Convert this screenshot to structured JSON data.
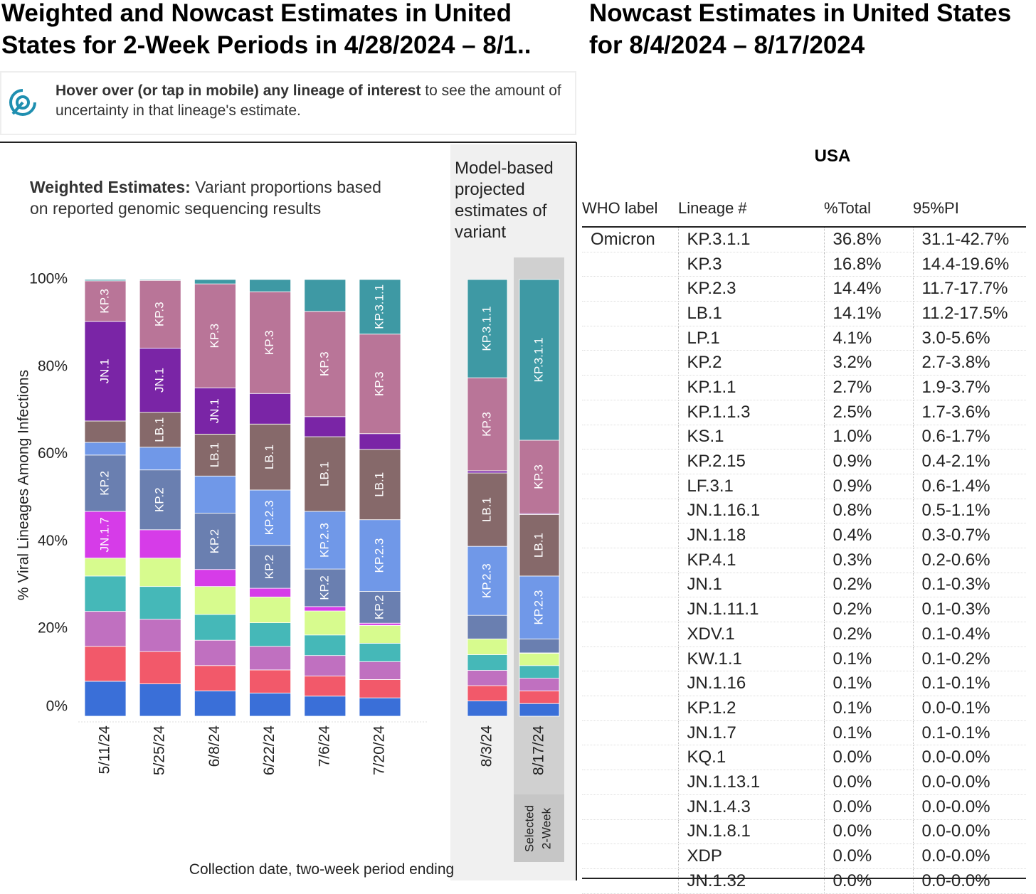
{
  "header": {
    "left_title": [
      "Weighted and Nowcast Estimates in United",
      "States for 2-Week Periods in 4/28/2024 – 8/1.."
    ],
    "right_title": [
      "Nowcast Estimates in United States",
      "for 8/4/2024 – 8/17/2024"
    ]
  },
  "hint": {
    "bold": "Hover over (or tap in mobile) any lineage of interest",
    "text": " to see the amount of uncertainty in that lineage's estimate."
  },
  "chart_data": {
    "type": "stacked_bar",
    "title_bold": "Weighted Estimates:",
    "title": " Variant proportions based on reported genomic sequencing results",
    "y_label": "% Viral Lineages Among Infections",
    "x_label": "Collection date, two-week period ending",
    "projected_label": "Model-based projected estimates of variant",
    "selected_label": [
      "Selected",
      "2-Week"
    ],
    "projected_start": "8/3/24",
    "selected": "8/17/24",
    "categories": [
      "5/11/24",
      "5/25/24",
      "6/8/24",
      "6/22/24",
      "7/6/24",
      "7/20/24",
      "8/3/24",
      "8/17/24"
    ],
    "ylim": [
      0,
      100
    ],
    "yticks": [
      {
        "value": 0,
        "label": "0%"
      },
      {
        "value": 20,
        "label": "20%"
      },
      {
        "value": 40,
        "label": "40%"
      },
      {
        "value": 60,
        "label": "60%"
      },
      {
        "value": 80,
        "label": "80%"
      },
      {
        "value": 100,
        "label": "100%"
      }
    ],
    "series": [
      {
        "color": "#3a6fd8",
        "values": [
          8,
          7.4,
          5.8,
          5.3,
          4.6,
          4.2,
          3.5,
          2.9
        ]
      },
      {
        "color": "#f2596a",
        "values": [
          8,
          7.4,
          5.8,
          5.3,
          4.6,
          4.2,
          3.5,
          2.9
        ]
      },
      {
        "color": "#c070c0",
        "values": [
          8,
          7.4,
          5.8,
          5.4,
          4.7,
          4.1,
          3.5,
          2.9
        ]
      },
      {
        "color": "#45b8b8",
        "values": [
          8.1,
          7.5,
          5.9,
          5.4,
          4.7,
          4.2,
          3.6,
          2.9
        ]
      },
      {
        "color": "#d7fb8e",
        "values": [
          4.1,
          6.5,
          6.4,
          5.9,
          5.5,
          4.1,
          3.6,
          2.8
        ]
      },
      {
        "name": "JN.1.7",
        "color": "#d63ce8",
        "values": [
          10.7,
          6.5,
          3.9,
          2.0,
          1.0,
          0.5,
          0,
          0.1
        ],
        "labeled": [
          true,
          false,
          false,
          false,
          false,
          false,
          false,
          false
        ]
      },
      {
        "name": "KP.2",
        "color": "#6a7fb0",
        "values": [
          12.9,
          13.7,
          12.9,
          9.8,
          8.6,
          7.3,
          5.4,
          3.2
        ],
        "labeled": [
          true,
          true,
          true,
          true,
          true,
          true,
          false,
          false
        ]
      },
      {
        "name": "KP.2.3",
        "color": "#7098e8",
        "values": [
          2.9,
          5.2,
          8.5,
          12.7,
          13.2,
          16.4,
          15.8,
          14.4
        ],
        "labeled": [
          false,
          false,
          false,
          true,
          true,
          true,
          true,
          true
        ]
      },
      {
        "name": "LB.1",
        "color": "#86696a",
        "values": [
          4.9,
          8.0,
          9.6,
          15.1,
          17.1,
          16.1,
          16.8,
          14.1
        ],
        "labeled": [
          false,
          true,
          true,
          true,
          true,
          true,
          true,
          true
        ]
      },
      {
        "name": "JN.1",
        "color": "#7a25a6",
        "values": [
          22.8,
          14.7,
          10.6,
          7.0,
          4.6,
          3.6,
          0.5,
          0.2
        ],
        "labeled": [
          true,
          true,
          true,
          false,
          false,
          false,
          false,
          false
        ]
      },
      {
        "name": "KP.3",
        "color": "#b97598",
        "values": [
          9.3,
          15.5,
          23.8,
          23.3,
          24.1,
          22.8,
          21.3,
          16.8
        ],
        "labeled": [
          true,
          true,
          true,
          true,
          true,
          true,
          true,
          true
        ]
      },
      {
        "name": "KP.3.1.1",
        "color": "#3e99a4",
        "values": [
          0.3,
          0.2,
          1.0,
          2.8,
          7.3,
          12.5,
          22.5,
          36.8
        ],
        "labeled": [
          false,
          false,
          false,
          false,
          false,
          true,
          true,
          true
        ]
      }
    ]
  },
  "table": {
    "title": "USA",
    "columns": [
      "WHO label",
      "Lineage #",
      "%Total",
      "95%PI"
    ],
    "group": "Omicron",
    "rows": [
      [
        "KP.3.1.1",
        "36.8%",
        "31.1-42.7%"
      ],
      [
        "KP.3",
        "16.8%",
        "14.4-19.6%"
      ],
      [
        "KP.2.3",
        "14.4%",
        "11.7-17.7%"
      ],
      [
        "LB.1",
        "14.1%",
        "11.2-17.5%"
      ],
      [
        "LP.1",
        "4.1%",
        "3.0-5.6%"
      ],
      [
        "KP.2",
        "3.2%",
        "2.7-3.8%"
      ],
      [
        "KP.1.1",
        "2.7%",
        "1.9-3.7%"
      ],
      [
        "KP.1.1.3",
        "2.5%",
        "1.7-3.6%"
      ],
      [
        "KS.1",
        "1.0%",
        "0.6-1.7%"
      ],
      [
        "KP.2.15",
        "0.9%",
        "0.4-2.1%"
      ],
      [
        "LF.3.1",
        "0.9%",
        "0.6-1.4%"
      ],
      [
        "JN.1.16.1",
        "0.8%",
        "0.5-1.1%"
      ],
      [
        "JN.1.18",
        "0.4%",
        "0.3-0.7%"
      ],
      [
        "KP.4.1",
        "0.3%",
        "0.2-0.6%"
      ],
      [
        "JN.1",
        "0.2%",
        "0.1-0.3%"
      ],
      [
        "JN.1.11.1",
        "0.2%",
        "0.1-0.3%"
      ],
      [
        "XDV.1",
        "0.2%",
        "0.1-0.4%"
      ],
      [
        "KW.1.1",
        "0.1%",
        "0.1-0.2%"
      ],
      [
        "JN.1.16",
        "0.1%",
        "0.1-0.1%"
      ],
      [
        "KP.1.2",
        "0.1%",
        "0.0-0.1%"
      ],
      [
        "JN.1.7",
        "0.1%",
        "0.1-0.1%"
      ],
      [
        "KQ.1",
        "0.0%",
        "0.0-0.0%"
      ],
      [
        "JN.1.13.1",
        "0.0%",
        "0.0-0.0%"
      ],
      [
        "JN.1.4.3",
        "0.0%",
        "0.0-0.0%"
      ],
      [
        "JN.1.8.1",
        "0.0%",
        "0.0-0.0%"
      ],
      [
        "XDP",
        "0.0%",
        "0.0-0.0%"
      ],
      [
        "JN.1.32",
        "0.0%",
        "0.0-0.0%"
      ]
    ]
  }
}
